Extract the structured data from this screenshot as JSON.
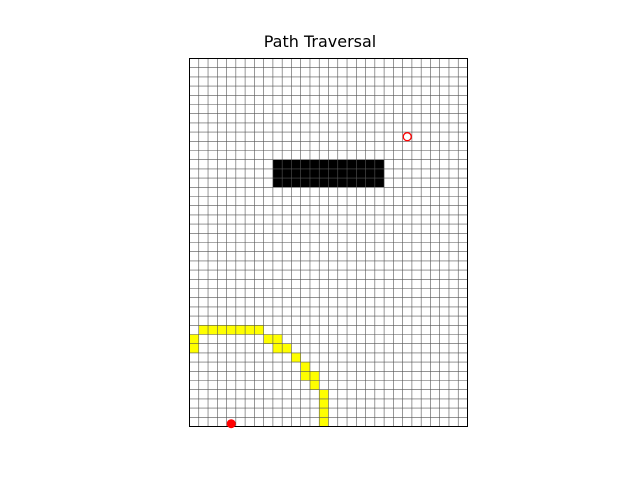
{
  "chart_data": {
    "type": "heatmap",
    "title": "Path Traversal",
    "grid": true,
    "xlim": [
      0,
      30
    ],
    "ylim": [
      0,
      40
    ],
    "colors": {
      "background": "#ffffff",
      "grid_line": "#555555",
      "obstacle": "#000000",
      "path": "#ffff00",
      "marker": "#ff0000"
    },
    "obstacle": {
      "x": [
        9,
        21
      ],
      "y": [
        26,
        29
      ]
    },
    "path_cells": [
      [
        14,
        0
      ],
      [
        14,
        1
      ],
      [
        14,
        2
      ],
      [
        14,
        3
      ],
      [
        13,
        4
      ],
      [
        13,
        5
      ],
      [
        12,
        5
      ],
      [
        12,
        6
      ],
      [
        11,
        7
      ],
      [
        10,
        8
      ],
      [
        9,
        8
      ],
      [
        9,
        9
      ],
      [
        8,
        9
      ],
      [
        7,
        10
      ],
      [
        6,
        10
      ],
      [
        5,
        10
      ],
      [
        4,
        10
      ],
      [
        3,
        10
      ],
      [
        2,
        10
      ],
      [
        1,
        10
      ],
      [
        0,
        9
      ],
      [
        0,
        8
      ]
    ],
    "start_point": {
      "x": 4.5,
      "y": 0.3,
      "marker": "filled-circle"
    },
    "goal_point": {
      "x": 23.5,
      "y": 31.5,
      "marker": "open-circle"
    }
  }
}
